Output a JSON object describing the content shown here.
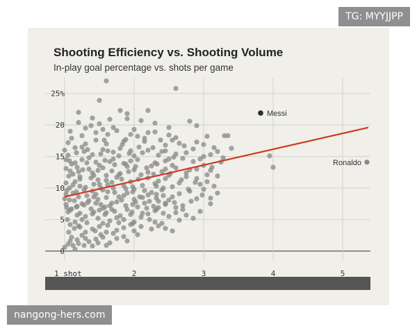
{
  "watermark_top": "TG: MYYJJPP",
  "watermark_bottom": "nangong-hers.com",
  "chart_data": {
    "type": "scatter",
    "title": "Shooting Efficiency vs. Shooting Volume",
    "subtitle": "In-play goal percentage vs. shots per game",
    "xlabel": "",
    "ylabel": "",
    "xlim": [
      0.72,
      5.4
    ],
    "ylim": [
      -1,
      27.5
    ],
    "x_ticks": [
      1,
      2,
      3,
      4,
      5
    ],
    "x_tick_labels": [
      "1 shot",
      "2",
      "3",
      "4",
      "5"
    ],
    "y_ticks": [
      0,
      5,
      10,
      15,
      20,
      25
    ],
    "y_tick_labels": [
      "0",
      "5",
      "10",
      "15",
      "20",
      "25%"
    ],
    "grid": true,
    "trend_line": {
      "x": [
        1.0,
        5.37
      ],
      "y": [
        8.6,
        19.6
      ],
      "color": "#cc3b1f"
    },
    "point_color": "#8a8a8a",
    "highlight_color": "#2b2b2b",
    "annotations": [
      {
        "label": "Messi",
        "x": 3.82,
        "y": 21.9
      },
      {
        "label": "Ronaldo",
        "x": 5.35,
        "y": 14.1
      }
    ],
    "points": [
      [
        1.6,
        27.0
      ],
      [
        1.5,
        23.9
      ],
      [
        2.6,
        25.8
      ],
      [
        1.2,
        22.0
      ],
      [
        1.8,
        22.3
      ],
      [
        2.2,
        22.3
      ],
      [
        1.9,
        21.8
      ],
      [
        1.4,
        21.1
      ],
      [
        1.65,
        20.9
      ],
      [
        2.1,
        20.7
      ],
      [
        2.8,
        20.6
      ],
      [
        2.9,
        19.9
      ],
      [
        1.3,
        19.5
      ],
      [
        1.75,
        19.1
      ],
      [
        2.3,
        18.9
      ],
      [
        2.5,
        18.4
      ],
      [
        3.05,
        18.2
      ],
      [
        3.3,
        18.3
      ],
      [
        3.35,
        18.3
      ],
      [
        1.1,
        17.9
      ],
      [
        1.45,
        17.6
      ],
      [
        1.85,
        17.4
      ],
      [
        2.15,
        17.4
      ],
      [
        2.65,
        17.1
      ],
      [
        3.0,
        16.9
      ],
      [
        3.15,
        16.4
      ],
      [
        3.4,
        16.3
      ],
      [
        1.0,
        16.0
      ],
      [
        1.25,
        16.5
      ],
      [
        1.55,
        16.1
      ],
      [
        1.95,
        15.9
      ],
      [
        2.4,
        15.8
      ],
      [
        2.75,
        15.6
      ],
      [
        3.1,
        15.3
      ],
      [
        3.2,
        15.8
      ],
      [
        3.95,
        15.1
      ],
      [
        4.0,
        13.3
      ],
      [
        1.05,
        15.2
      ],
      [
        1.35,
        14.8
      ],
      [
        1.7,
        14.6
      ],
      [
        2.05,
        14.5
      ],
      [
        2.45,
        14.3
      ],
      [
        2.85,
        14.2
      ],
      [
        2.95,
        14.6
      ],
      [
        3.25,
        14.1
      ],
      [
        1.15,
        14.0
      ],
      [
        1.5,
        13.6
      ],
      [
        1.9,
        13.4
      ],
      [
        2.25,
        13.5
      ],
      [
        2.6,
        13.2
      ],
      [
        2.9,
        13.0
      ],
      [
        3.1,
        12.8
      ],
      [
        3.0,
        13.6
      ],
      [
        1.08,
        12.7
      ],
      [
        1.4,
        12.4
      ],
      [
        1.8,
        12.3
      ],
      [
        2.1,
        12.1
      ],
      [
        2.5,
        12.0
      ],
      [
        2.75,
        11.8
      ],
      [
        3.05,
        12.1
      ],
      [
        1.22,
        11.4
      ],
      [
        1.6,
        11.2
      ],
      [
        1.95,
        11.0
      ],
      [
        2.35,
        11.1
      ],
      [
        2.65,
        10.8
      ],
      [
        2.95,
        10.6
      ],
      [
        3.15,
        10.3
      ],
      [
        1.02,
        10.8
      ],
      [
        1.3,
        10.1
      ],
      [
        1.7,
        10.0
      ],
      [
        2.0,
        9.8
      ],
      [
        2.4,
        9.7
      ],
      [
        2.8,
        9.5
      ],
      [
        3.0,
        9.8
      ],
      [
        1.12,
        9.2
      ],
      [
        1.45,
        9.0
      ],
      [
        1.85,
        8.8
      ],
      [
        2.2,
        8.9
      ],
      [
        2.55,
        8.6
      ],
      [
        2.9,
        8.3
      ],
      [
        1.0,
        8.3
      ],
      [
        1.35,
        8.0
      ],
      [
        1.75,
        7.8
      ],
      [
        2.15,
        7.6
      ],
      [
        2.45,
        7.4
      ],
      [
        2.7,
        7.2
      ],
      [
        3.1,
        7.5
      ],
      [
        1.18,
        7.1
      ],
      [
        1.55,
        6.8
      ],
      [
        1.9,
        6.6
      ],
      [
        2.3,
        6.4
      ],
      [
        2.6,
        6.1
      ],
      [
        2.95,
        6.3
      ],
      [
        1.05,
        6.2
      ],
      [
        1.4,
        5.9
      ],
      [
        1.8,
        5.6
      ],
      [
        2.1,
        5.4
      ],
      [
        2.5,
        5.5
      ],
      [
        2.85,
        5.2
      ],
      [
        1.25,
        5.0
      ],
      [
        1.65,
        4.8
      ],
      [
        2.0,
        4.6
      ],
      [
        2.4,
        4.4
      ],
      [
        2.65,
        4.9
      ],
      [
        1.08,
        4.2
      ],
      [
        1.5,
        3.9
      ],
      [
        1.85,
        3.7
      ],
      [
        2.25,
        3.5
      ],
      [
        2.55,
        3.2
      ],
      [
        1.3,
        3.0
      ],
      [
        1.7,
        2.8
      ],
      [
        2.05,
        2.6
      ],
      [
        1.1,
        2.2
      ],
      [
        1.45,
        1.9
      ],
      [
        1.9,
        1.6
      ],
      [
        1.2,
        1.2
      ],
      [
        1.0,
        0.6
      ],
      [
        1.15,
        0.3
      ],
      [
        1.6,
        0.9
      ],
      [
        1.35,
        1.5
      ],
      [
        1.2,
        20.4
      ],
      [
        1.5,
        20.2
      ],
      [
        1.7,
        19.6
      ],
      [
        2.0,
        19.3
      ],
      [
        2.3,
        20.3
      ],
      [
        1.45,
        18.8
      ],
      [
        1.95,
        18.5
      ],
      [
        2.6,
        18.0
      ],
      [
        1.25,
        18.3
      ],
      [
        2.15,
        17.9
      ],
      [
        1.05,
        17.2
      ],
      [
        1.6,
        17.0
      ],
      [
        2.45,
        16.8
      ],
      [
        2.85,
        16.2
      ],
      [
        1.15,
        16.4
      ],
      [
        1.8,
        16.3
      ],
      [
        2.2,
        16.0
      ],
      [
        2.6,
        15.4
      ],
      [
        1.4,
        15.3
      ],
      [
        2.0,
        15.1
      ],
      [
        1.25,
        14.5
      ],
      [
        1.65,
        14.2
      ],
      [
        2.3,
        14.0
      ],
      [
        2.7,
        14.7
      ],
      [
        1.1,
        13.8
      ],
      [
        1.55,
        13.2
      ],
      [
        1.85,
        13.9
      ],
      [
        2.4,
        12.6
      ],
      [
        2.0,
        12.9
      ],
      [
        1.2,
        12.6
      ],
      [
        1.6,
        12.0
      ],
      [
        2.2,
        11.6
      ],
      [
        2.9,
        11.5
      ],
      [
        1.15,
        11.0
      ],
      [
        1.5,
        10.6
      ],
      [
        1.85,
        10.4
      ],
      [
        2.55,
        10.2
      ],
      [
        1.03,
        9.6
      ],
      [
        1.4,
        9.5
      ],
      [
        2.25,
        9.3
      ],
      [
        1.6,
        8.5
      ],
      [
        2.0,
        8.2
      ],
      [
        2.35,
        7.9
      ],
      [
        1.25,
        7.5
      ],
      [
        1.65,
        7.2
      ],
      [
        2.05,
        7.0
      ],
      [
        1.1,
        6.7
      ],
      [
        1.5,
        6.5
      ],
      [
        2.2,
        5.9
      ],
      [
        1.3,
        5.5
      ],
      [
        1.75,
        5.3
      ],
      [
        1.15,
        4.6
      ],
      [
        1.55,
        4.4
      ],
      [
        1.95,
        4.2
      ],
      [
        1.4,
        3.5
      ],
      [
        1.75,
        3.3
      ],
      [
        1.25,
        2.5
      ],
      [
        1.55,
        2.2
      ],
      [
        1.08,
        1.6
      ],
      [
        1.4,
        0.8
      ],
      [
        1.9,
        21.0
      ],
      [
        2.05,
        18.2
      ],
      [
        1.3,
        17.0
      ],
      [
        2.55,
        17.6
      ],
      [
        2.9,
        17.3
      ],
      [
        1.7,
        15.7
      ],
      [
        2.5,
        14.6
      ],
      [
        1.95,
        14.3
      ],
      [
        2.8,
        12.9
      ],
      [
        1.35,
        13.0
      ],
      [
        1.75,
        11.7
      ],
      [
        2.3,
        10.7
      ],
      [
        1.55,
        9.7
      ],
      [
        2.65,
        9.1
      ],
      [
        1.9,
        9.2
      ],
      [
        1.2,
        8.6
      ],
      [
        2.5,
        8.1
      ],
      [
        1.45,
        7.6
      ],
      [
        2.35,
        6.9
      ],
      [
        1.6,
        6.1
      ],
      [
        1.95,
        5.8
      ],
      [
        1.2,
        4.0
      ],
      [
        2.1,
        3.9
      ],
      [
        1.6,
        3.0
      ],
      [
        1.3,
        2.0
      ],
      [
        2.3,
        4.6
      ],
      [
        2.7,
        6.6
      ],
      [
        3.2,
        9.2
      ],
      [
        3.05,
        11.0
      ],
      [
        2.75,
        12.4
      ],
      [
        1.08,
        19.0
      ],
      [
        1.38,
        19.9
      ],
      [
        1.62,
        18.5
      ],
      [
        1.88,
        17.7
      ],
      [
        2.38,
        17.6
      ],
      [
        2.72,
        16.7
      ],
      [
        1.28,
        15.8
      ],
      [
        1.52,
        15.4
      ],
      [
        1.78,
        15.1
      ],
      [
        2.12,
        15.6
      ],
      [
        2.35,
        15.2
      ],
      [
        1.02,
        14.5
      ],
      [
        1.45,
        14.1
      ],
      [
        1.72,
        13.7
      ],
      [
        2.18,
        13.2
      ],
      [
        2.55,
        13.6
      ],
      [
        1.18,
        13.3
      ],
      [
        1.48,
        12.8
      ],
      [
        1.92,
        12.6
      ],
      [
        2.28,
        12.2
      ],
      [
        2.68,
        11.3
      ],
      [
        1.06,
        11.9
      ],
      [
        1.38,
        11.6
      ],
      [
        1.68,
        10.9
      ],
      [
        2.12,
        10.4
      ],
      [
        2.42,
        10.0
      ],
      [
        1.22,
        10.3
      ],
      [
        1.52,
        10.0
      ],
      [
        1.88,
        9.9
      ],
      [
        2.15,
        9.6
      ],
      [
        2.78,
        9.8
      ],
      [
        1.02,
        9.0
      ],
      [
        1.32,
        8.8
      ],
      [
        1.72,
        9.3
      ],
      [
        2.08,
        8.6
      ],
      [
        2.42,
        8.8
      ],
      [
        1.14,
        8.0
      ],
      [
        1.48,
        8.2
      ],
      [
        1.82,
        8.1
      ],
      [
        2.22,
        7.9
      ],
      [
        2.58,
        7.7
      ],
      [
        1.02,
        7.4
      ],
      [
        1.28,
        7.3
      ],
      [
        1.58,
        7.0
      ],
      [
        1.98,
        7.4
      ],
      [
        2.28,
        7.1
      ],
      [
        1.08,
        6.5
      ],
      [
        1.42,
        6.2
      ],
      [
        1.72,
        6.3
      ],
      [
        2.12,
        6.0
      ],
      [
        2.42,
        6.0
      ],
      [
        1.18,
        5.7
      ],
      [
        1.48,
        5.2
      ],
      [
        1.85,
        5.0
      ],
      [
        2.22,
        5.0
      ],
      [
        1.04,
        5.0
      ],
      [
        1.32,
        4.5
      ],
      [
        1.62,
        4.1
      ],
      [
        1.98,
        4.4
      ],
      [
        1.14,
        3.6
      ],
      [
        1.44,
        3.2
      ],
      [
        1.78,
        4.5
      ],
      [
        1.06,
        3.0
      ],
      [
        1.22,
        3.8
      ],
      [
        1.52,
        2.6
      ],
      [
        1.18,
        1.8
      ],
      [
        1.05,
        1.1
      ],
      [
        1.28,
        0.9
      ],
      [
        1.48,
        1.3
      ],
      [
        1.75,
        2.0
      ],
      [
        2.5,
        19.6
      ],
      [
        2.2,
        18.8
      ],
      [
        1.55,
        19.3
      ],
      [
        3.0,
        15.0
      ],
      [
        3.28,
        14.8
      ],
      [
        3.12,
        13.3
      ],
      [
        2.88,
        10.9
      ],
      [
        3.2,
        11.9
      ],
      [
        2.98,
        8.9
      ],
      [
        2.82,
        7.9
      ],
      [
        2.6,
        6.9
      ],
      [
        2.35,
        4.0
      ],
      [
        2.0,
        3.2
      ],
      [
        1.85,
        2.3
      ],
      [
        1.65,
        1.3
      ],
      [
        1.12,
        0.9
      ],
      [
        2.45,
        3.6
      ],
      [
        2.75,
        5.7
      ],
      [
        3.1,
        8.4
      ],
      [
        2.45,
        15.9
      ],
      [
        1.33,
        16.1
      ],
      [
        1.57,
        17.6
      ],
      [
        1.83,
        16.9
      ],
      [
        2.07,
        16.5
      ],
      [
        2.27,
        16.4
      ],
      [
        1.17,
        15.6
      ],
      [
        1.62,
        15.9
      ],
      [
        1.93,
        15.5
      ],
      [
        2.57,
        14.9
      ],
      [
        1.07,
        14.3
      ],
      [
        1.32,
        14.0
      ],
      [
        1.58,
        14.4
      ],
      [
        1.88,
        13.8
      ],
      [
        2.33,
        13.8
      ],
      [
        1.02,
        13.1
      ],
      [
        1.26,
        12.9
      ],
      [
        1.68,
        12.7
      ],
      [
        2.02,
        13.4
      ],
      [
        2.45,
        13.0
      ],
      [
        1.12,
        12.2
      ],
      [
        1.42,
        12.0
      ],
      [
        1.78,
        12.1
      ],
      [
        2.2,
        12.5
      ],
      [
        2.52,
        12.3
      ],
      [
        1.22,
        11.8
      ],
      [
        1.48,
        11.3
      ],
      [
        1.82,
        11.4
      ],
      [
        2.06,
        11.4
      ],
      [
        2.45,
        11.5
      ],
      [
        1.12,
        10.5
      ],
      [
        1.42,
        10.6
      ],
      [
        1.62,
        10.5
      ],
      [
        1.98,
        10.2
      ],
      [
        2.32,
        10.3
      ],
      [
        1.07,
        10.0
      ],
      [
        1.28,
        9.7
      ],
      [
        1.62,
        9.4
      ],
      [
        1.98,
        9.4
      ],
      [
        2.32,
        9.0
      ],
      [
        1.17,
        9.4
      ],
      [
        1.42,
        8.6
      ],
      [
        1.78,
        8.6
      ],
      [
        2.12,
        8.5
      ],
      [
        2.32,
        8.4
      ],
      [
        1.07,
        8.1
      ],
      [
        1.33,
        7.7
      ],
      [
        1.68,
        7.6
      ],
      [
        2.02,
        7.8
      ],
      [
        2.45,
        7.6
      ],
      [
        1.17,
        7.0
      ],
      [
        1.52,
        7.4
      ],
      [
        1.88,
        7.2
      ],
      [
        2.18,
        6.8
      ],
      [
        1.03,
        6.9
      ],
      [
        1.38,
        6.7
      ],
      [
        1.68,
        6.6
      ],
      [
        1.97,
        6.2
      ],
      [
        2.32,
        6.6
      ],
      [
        1.22,
        6.0
      ],
      [
        1.58,
        5.8
      ]
    ]
  }
}
